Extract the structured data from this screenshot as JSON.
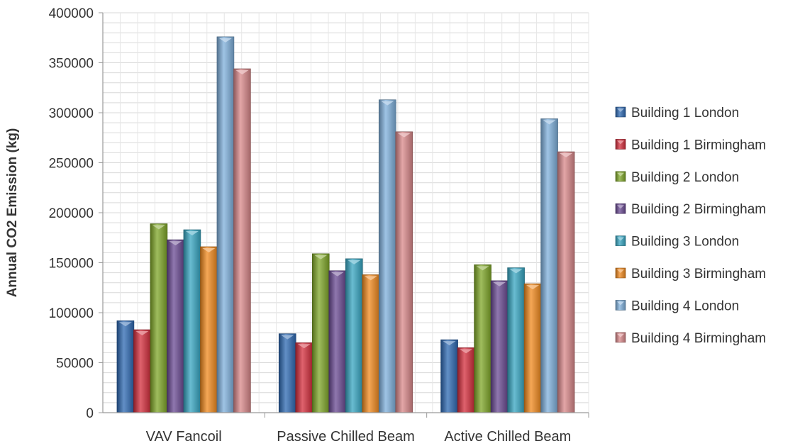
{
  "chart_data": {
    "type": "bar",
    "title": "",
    "xlabel": "",
    "ylabel": "Annual CO2 Emission  (kg)",
    "ylim": [
      0,
      400000
    ],
    "yticks": [
      "0",
      "50000",
      "100000",
      "150000",
      "200000",
      "250000",
      "300000",
      "350000",
      "400000"
    ],
    "grid": true,
    "legend_position": "right",
    "categories": [
      "VAV Fancoil",
      "Passive Chilled Beam",
      "Active Chilled Beam"
    ],
    "series": [
      {
        "name": "Building 1 London",
        "color": "#2e69b3",
        "values": [
          92000,
          79000,
          73000
        ]
      },
      {
        "name": "Building 1 Birmingham",
        "color": "#d42d3c",
        "values": [
          83000,
          70000,
          65000
        ]
      },
      {
        "name": "Building 2 London",
        "color": "#7fa728",
        "values": [
          189000,
          159000,
          148000
        ]
      },
      {
        "name": "Building 2 Birmingham",
        "color": "#6a4a93",
        "values": [
          173000,
          142000,
          132000
        ]
      },
      {
        "name": "Building 3 London",
        "color": "#37a6c2",
        "values": [
          183000,
          154000,
          145000
        ]
      },
      {
        "name": "Building 3 Birmingham",
        "color": "#f18a1e",
        "values": [
          166000,
          138000,
          129000
        ]
      },
      {
        "name": "Building 4 London",
        "color": "#7fb0dc",
        "values": [
          376000,
          313000,
          294000
        ]
      },
      {
        "name": "Building 4 Birmingham",
        "color": "#d9888a",
        "values": [
          344000,
          281000,
          261000
        ]
      }
    ]
  }
}
